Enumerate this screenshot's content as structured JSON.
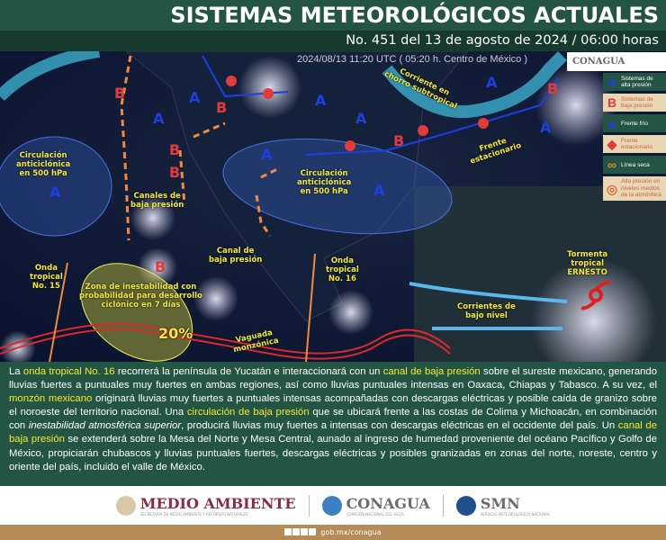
{
  "header": {
    "title": "SISTEMAS METEOROLÓGICOS ACTUALES",
    "subtitle": "No. 451 del 13 de agosto de 2024 / 06:00 horas"
  },
  "map": {
    "timestamp": "2024/08/13 11:20 UTC ( 05:20 h. Centro de México )",
    "logo": "CONAGUA",
    "labels": {
      "jet": "Corriente en\nchorro subtropical",
      "anticyclone_pacific": "Circulación\nanticiclónica\nen 500 hPa",
      "anticyclone_gulf": "Circulación\nanticiclónica\nen 500 hPa",
      "canales": "Canales de\nbaja presión",
      "canal": "Canal de\nbaja presión",
      "stationary": "Frente\nestacionario",
      "wave15": "Onda\ntropical\nNo. 15",
      "wave16": "Onda\ntropical\nNo. 16",
      "zone": "Zona de inestabilidad con\nprobabilidad para desarrollo\nciclónico en 7 días",
      "probability": "20%",
      "monsoon": "Vaguada\nmonzónica",
      "currents": "Corrientes de\nbajo nivel",
      "storm": "Tormenta\ntropical\nERNESTO"
    },
    "high_letter": "A",
    "low_letter": "B",
    "colors": {
      "high": "#1b3fe0",
      "low": "#e43a3a",
      "canal": "#f08a3c",
      "jet": "#3aa6c4",
      "zone": "#e8e84a",
      "monsoon": "#d92a2a",
      "currents": "#5ab8ee"
    }
  },
  "legend": [
    {
      "icon": "A",
      "label": "Sistemas de alta presión",
      "style": "dark"
    },
    {
      "icon": "B",
      "label": "Sistemas de baja presión",
      "style": "light"
    },
    {
      "icon": "cold-front",
      "label": "Frente frío",
      "style": "dark"
    },
    {
      "icon": "stationary-front",
      "label": "Frente estacionario",
      "style": "light"
    },
    {
      "icon": "dry-line",
      "label": "Línea seca",
      "style": "dark"
    },
    {
      "icon": "upper-high",
      "label": "Alta presión en niveles medios de la atmósfera",
      "style": "light"
    }
  ],
  "description": [
    {
      "t": "La ",
      "h": false
    },
    {
      "t": "onda tropical No. 16",
      "h": true
    },
    {
      "t": " recorrerá la península de Yucatán e interaccionará con un ",
      "h": false
    },
    {
      "t": "canal de baja presión",
      "h": true
    },
    {
      "t": " sobre el sureste mexicano, generando lluvias fuertes a puntuales muy fuertes en ambas regiones, así como lluvias puntuales intensas en Oaxaca, Chiapas y Tabasco. A su vez, el ",
      "h": false
    },
    {
      "t": "monzón mexicano",
      "h": true
    },
    {
      "t": " originará lluvias muy fuertes a puntuales intensas acompañadas con descargas eléctricas y posible caída de granizo sobre el noroeste del territorio nacional. Una ",
      "h": false
    },
    {
      "t": "circulación de baja presión",
      "h": true
    },
    {
      "t": " que se ubicará frente a las costas de Colima y Michoacán, en combinación con ",
      "h": false
    },
    {
      "t": "inestabilidad atmosférica superior",
      "h": false,
      "i": true
    },
    {
      "t": ", producirá lluvias muy fuertes a intensas con descargas eléctricas en el occidente del país. Un ",
      "h": false
    },
    {
      "t": "canal de baja presión",
      "h": true
    },
    {
      "t": " se extenderá sobre la Mesa del Norte y Mesa Central, aunado al ingreso de humedad proveniente del océano Pacífico y Golfo de México, propiciarán chubascos y lluvias puntuales fuertes, descargas eléctricas y posibles granizadas en zonas del norte, noreste, centro y oriente del país, incluido el valle de México.",
      "h": false
    }
  ],
  "footer": {
    "logos": [
      {
        "name": "MEDIO AMBIENTE",
        "sub": "SECRETARÍA DE MEDIO AMBIENTE Y RECURSOS NATURALES",
        "color": "#8c2a45"
      },
      {
        "name": "CONAGUA",
        "sub": "COMISIÓN NACIONAL DEL AGUA",
        "color": "#6b6b6b"
      },
      {
        "name": "SMN",
        "sub": "SERVICIO METEOROLÓGICO NACIONAL",
        "color": "#6b6b6b"
      }
    ],
    "social": [
      "facebook-icon",
      "x-icon",
      "instagram-icon",
      "youtube-icon"
    ],
    "url": "gob.mx/conagua"
  }
}
